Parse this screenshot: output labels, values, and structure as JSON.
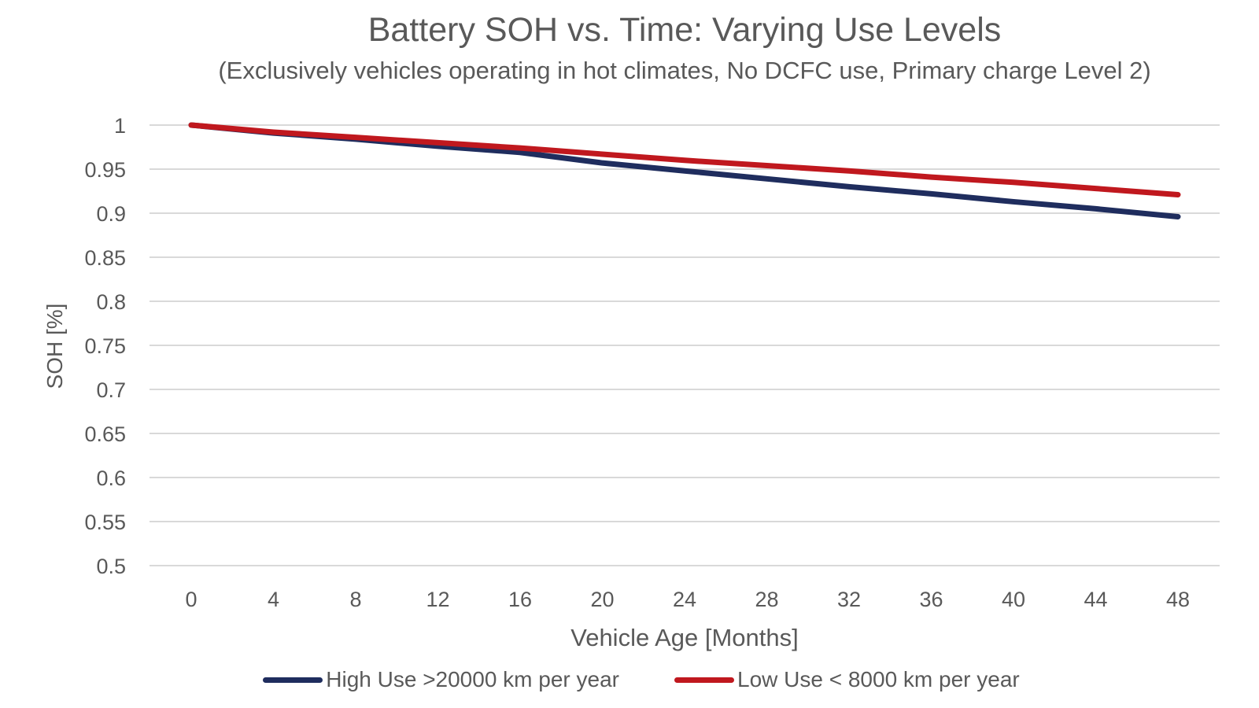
{
  "chart_data": {
    "type": "line",
    "title": "Battery SOH vs. Time: Varying Use Levels",
    "subtitle": "(Exclusively vehicles operating in hot climates, No DCFC use, Primary charge Level 2)",
    "xlabel": "Vehicle Age [Months]",
    "ylabel": "SOH [%]",
    "x": [
      0,
      4,
      8,
      12,
      16,
      20,
      24,
      28,
      32,
      36,
      40,
      44,
      48
    ],
    "x_tick_labels": [
      "0",
      "4",
      "8",
      "12",
      "16",
      "20",
      "24",
      "28",
      "32",
      "36",
      "40",
      "44",
      "48"
    ],
    "y_tick_labels": [
      "1",
      "0.95",
      "0.9",
      "0.85",
      "0.8",
      "0.75",
      "0.7",
      "0.65",
      "0.6",
      "0.55",
      "0.5"
    ],
    "ylim": [
      0.5,
      1.0
    ],
    "xlim": [
      0,
      48
    ],
    "grid": true,
    "legend_position": "bottom",
    "series": [
      {
        "name": "High Use >20000 km per year",
        "color": "#1f2d5e",
        "values": [
          1.0,
          0.991,
          0.984,
          0.976,
          0.969,
          0.957,
          0.948,
          0.939,
          0.93,
          0.922,
          0.913,
          0.905,
          0.896
        ]
      },
      {
        "name": "Low Use < 8000 km per year",
        "color": "#c0181e",
        "values": [
          1.0,
          0.992,
          0.986,
          0.98,
          0.974,
          0.967,
          0.96,
          0.954,
          0.948,
          0.941,
          0.935,
          0.928,
          0.921
        ]
      }
    ]
  }
}
